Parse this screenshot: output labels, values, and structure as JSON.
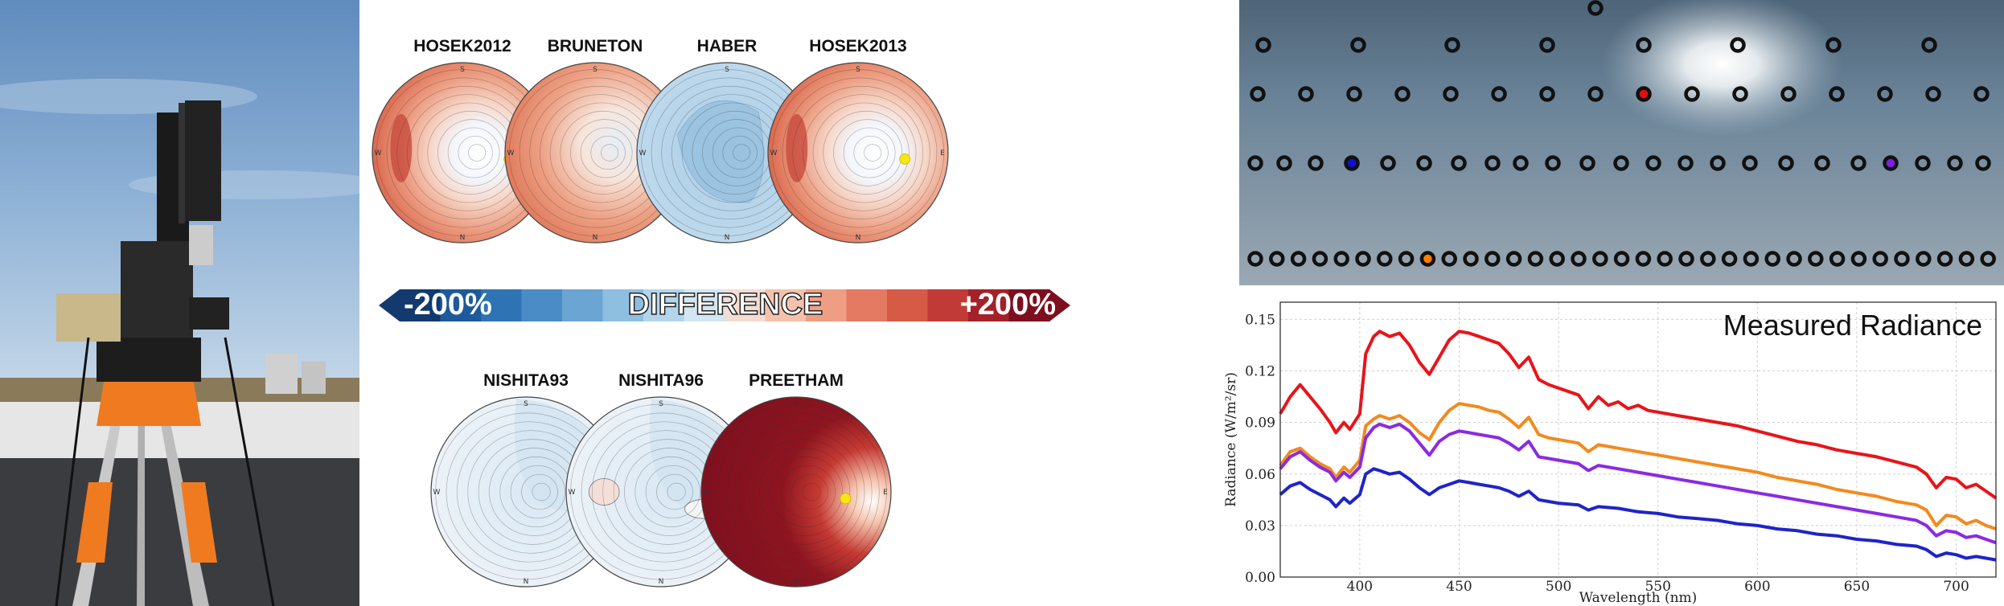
{
  "figure": {
    "photo": {
      "icon": "spectroradiometer-on-tripod-photo"
    },
    "polar_plots": {
      "row1": [
        {
          "title": "HOSEK2012",
          "style": "hosek"
        },
        {
          "title": "BRUNETON",
          "style": "bruneton"
        },
        {
          "title": "HABER",
          "style": "haber"
        },
        {
          "title": "HOSEK2013",
          "style": "hosek"
        }
      ],
      "row2": [
        {
          "title": "NISHITA93",
          "style": "nishita"
        },
        {
          "title": "NISHITA96",
          "style": "nishita96"
        },
        {
          "title": "PREETHAM",
          "style": "preetham"
        }
      ],
      "cardinals": {
        "n": "N",
        "s": "S",
        "e": "E",
        "w": "W"
      }
    },
    "colorbar": {
      "min_label": "-200%",
      "center_label": "DIFFERENCE",
      "max_label": "+200%",
      "colors": [
        "#123a6e",
        "#1d5a9c",
        "#2e74b5",
        "#4a8cc6",
        "#6aa5d4",
        "#8ebfe1",
        "#b2d5ec",
        "#d2e6f3",
        "#f6dcd0",
        "#f4c1ac",
        "#ef9e84",
        "#e47a62",
        "#d65a46",
        "#c23a35",
        "#a42129",
        "#7e0f1e"
      ]
    },
    "sky_samples": {
      "marker_color": "#111111",
      "highlight_colors": {
        "red": "#e01010",
        "orange": "#ff8000",
        "purple": "#7a20e0",
        "blue": "#1010d0"
      }
    }
  },
  "chart_data": {
    "type": "line",
    "title": "Measured Radiance",
    "xlabel": "Wavelength (nm)",
    "ylabel": "Radiance (W/m²/sr)",
    "xlim": [
      360,
      720
    ],
    "ylim": [
      0,
      0.16
    ],
    "xticks": [
      400,
      450,
      500,
      550,
      600,
      650,
      700
    ],
    "yticks": [
      0.0,
      0.03,
      0.06,
      0.09,
      0.12,
      0.15
    ],
    "grid": true,
    "series": [
      {
        "color": "#e8141a",
        "points": [
          [
            360,
            0.095
          ],
          [
            365,
            0.105
          ],
          [
            370,
            0.112
          ],
          [
            375,
            0.105
          ],
          [
            380,
            0.098
          ],
          [
            385,
            0.09
          ],
          [
            388,
            0.084
          ],
          [
            392,
            0.09
          ],
          [
            395,
            0.086
          ],
          [
            400,
            0.095
          ],
          [
            403,
            0.13
          ],
          [
            407,
            0.14
          ],
          [
            410,
            0.143
          ],
          [
            415,
            0.14
          ],
          [
            420,
            0.142
          ],
          [
            425,
            0.135
          ],
          [
            430,
            0.125
          ],
          [
            435,
            0.118
          ],
          [
            440,
            0.128
          ],
          [
            445,
            0.138
          ],
          [
            450,
            0.143
          ],
          [
            455,
            0.142
          ],
          [
            460,
            0.14
          ],
          [
            465,
            0.138
          ],
          [
            470,
            0.136
          ],
          [
            475,
            0.13
          ],
          [
            480,
            0.122
          ],
          [
            485,
            0.128
          ],
          [
            490,
            0.115
          ],
          [
            495,
            0.112
          ],
          [
            500,
            0.11
          ],
          [
            505,
            0.108
          ],
          [
            510,
            0.106
          ],
          [
            515,
            0.098
          ],
          [
            520,
            0.105
          ],
          [
            525,
            0.1
          ],
          [
            530,
            0.102
          ],
          [
            535,
            0.098
          ],
          [
            540,
            0.1
          ],
          [
            545,
            0.097
          ],
          [
            550,
            0.096
          ],
          [
            560,
            0.094
          ],
          [
            570,
            0.092
          ],
          [
            580,
            0.09
          ],
          [
            590,
            0.088
          ],
          [
            600,
            0.085
          ],
          [
            610,
            0.082
          ],
          [
            620,
            0.079
          ],
          [
            630,
            0.077
          ],
          [
            640,
            0.074
          ],
          [
            650,
            0.072
          ],
          [
            660,
            0.07
          ],
          [
            670,
            0.067
          ],
          [
            680,
            0.064
          ],
          [
            685,
            0.06
          ],
          [
            690,
            0.052
          ],
          [
            695,
            0.058
          ],
          [
            700,
            0.057
          ],
          [
            705,
            0.052
          ],
          [
            710,
            0.054
          ],
          [
            715,
            0.05
          ],
          [
            720,
            0.046
          ]
        ]
      },
      {
        "color": "#f28a1e",
        "points": [
          [
            360,
            0.065
          ],
          [
            365,
            0.073
          ],
          [
            370,
            0.075
          ],
          [
            375,
            0.07
          ],
          [
            380,
            0.066
          ],
          [
            385,
            0.063
          ],
          [
            388,
            0.058
          ],
          [
            392,
            0.064
          ],
          [
            395,
            0.061
          ],
          [
            400,
            0.068
          ],
          [
            403,
            0.088
          ],
          [
            407,
            0.092
          ],
          [
            410,
            0.094
          ],
          [
            415,
            0.092
          ],
          [
            420,
            0.094
          ],
          [
            425,
            0.09
          ],
          [
            430,
            0.084
          ],
          [
            435,
            0.08
          ],
          [
            440,
            0.09
          ],
          [
            445,
            0.097
          ],
          [
            450,
            0.101
          ],
          [
            455,
            0.1
          ],
          [
            460,
            0.099
          ],
          [
            465,
            0.097
          ],
          [
            470,
            0.096
          ],
          [
            475,
            0.092
          ],
          [
            480,
            0.087
          ],
          [
            485,
            0.093
          ],
          [
            490,
            0.083
          ],
          [
            495,
            0.081
          ],
          [
            500,
            0.08
          ],
          [
            510,
            0.078
          ],
          [
            515,
            0.073
          ],
          [
            520,
            0.077
          ],
          [
            530,
            0.075
          ],
          [
            540,
            0.073
          ],
          [
            550,
            0.071
          ],
          [
            560,
            0.069
          ],
          [
            570,
            0.067
          ],
          [
            580,
            0.065
          ],
          [
            590,
            0.063
          ],
          [
            600,
            0.061
          ],
          [
            610,
            0.058
          ],
          [
            620,
            0.056
          ],
          [
            630,
            0.054
          ],
          [
            640,
            0.051
          ],
          [
            650,
            0.049
          ],
          [
            660,
            0.047
          ],
          [
            670,
            0.044
          ],
          [
            680,
            0.042
          ],
          [
            685,
            0.039
          ],
          [
            690,
            0.03
          ],
          [
            695,
            0.036
          ],
          [
            700,
            0.035
          ],
          [
            705,
            0.031
          ],
          [
            710,
            0.033
          ],
          [
            715,
            0.03
          ],
          [
            720,
            0.028
          ]
        ]
      },
      {
        "color": "#8a2be2",
        "points": [
          [
            360,
            0.063
          ],
          [
            365,
            0.07
          ],
          [
            370,
            0.073
          ],
          [
            375,
            0.068
          ],
          [
            380,
            0.064
          ],
          [
            385,
            0.061
          ],
          [
            388,
            0.056
          ],
          [
            392,
            0.061
          ],
          [
            395,
            0.058
          ],
          [
            400,
            0.064
          ],
          [
            403,
            0.081
          ],
          [
            407,
            0.087
          ],
          [
            410,
            0.089
          ],
          [
            415,
            0.087
          ],
          [
            420,
            0.089
          ],
          [
            425,
            0.085
          ],
          [
            430,
            0.078
          ],
          [
            435,
            0.071
          ],
          [
            440,
            0.079
          ],
          [
            445,
            0.083
          ],
          [
            450,
            0.085
          ],
          [
            455,
            0.084
          ],
          [
            460,
            0.083
          ],
          [
            465,
            0.082
          ],
          [
            470,
            0.081
          ],
          [
            475,
            0.078
          ],
          [
            480,
            0.074
          ],
          [
            485,
            0.079
          ],
          [
            490,
            0.07
          ],
          [
            495,
            0.069
          ],
          [
            500,
            0.068
          ],
          [
            510,
            0.066
          ],
          [
            515,
            0.062
          ],
          [
            520,
            0.065
          ],
          [
            530,
            0.063
          ],
          [
            540,
            0.061
          ],
          [
            550,
            0.059
          ],
          [
            560,
            0.057
          ],
          [
            570,
            0.055
          ],
          [
            580,
            0.053
          ],
          [
            590,
            0.051
          ],
          [
            600,
            0.049
          ],
          [
            610,
            0.047
          ],
          [
            620,
            0.045
          ],
          [
            630,
            0.043
          ],
          [
            640,
            0.041
          ],
          [
            650,
            0.039
          ],
          [
            660,
            0.037
          ],
          [
            670,
            0.035
          ],
          [
            680,
            0.033
          ],
          [
            685,
            0.03
          ],
          [
            690,
            0.024
          ],
          [
            695,
            0.027
          ],
          [
            700,
            0.026
          ],
          [
            705,
            0.023
          ],
          [
            710,
            0.024
          ],
          [
            715,
            0.022
          ],
          [
            720,
            0.02
          ]
        ]
      },
      {
        "color": "#1f24c8",
        "points": [
          [
            360,
            0.048
          ],
          [
            365,
            0.053
          ],
          [
            370,
            0.055
          ],
          [
            375,
            0.051
          ],
          [
            380,
            0.048
          ],
          [
            385,
            0.045
          ],
          [
            388,
            0.041
          ],
          [
            392,
            0.046
          ],
          [
            395,
            0.043
          ],
          [
            400,
            0.048
          ],
          [
            403,
            0.06
          ],
          [
            407,
            0.063
          ],
          [
            410,
            0.062
          ],
          [
            415,
            0.06
          ],
          [
            420,
            0.061
          ],
          [
            425,
            0.057
          ],
          [
            430,
            0.052
          ],
          [
            435,
            0.048
          ],
          [
            440,
            0.052
          ],
          [
            445,
            0.054
          ],
          [
            450,
            0.056
          ],
          [
            455,
            0.055
          ],
          [
            460,
            0.054
          ],
          [
            465,
            0.053
          ],
          [
            470,
            0.052
          ],
          [
            475,
            0.05
          ],
          [
            480,
            0.047
          ],
          [
            485,
            0.05
          ],
          [
            490,
            0.045
          ],
          [
            495,
            0.044
          ],
          [
            500,
            0.043
          ],
          [
            510,
            0.042
          ],
          [
            515,
            0.039
          ],
          [
            520,
            0.041
          ],
          [
            530,
            0.04
          ],
          [
            540,
            0.038
          ],
          [
            550,
            0.037
          ],
          [
            560,
            0.035
          ],
          [
            570,
            0.034
          ],
          [
            580,
            0.033
          ],
          [
            590,
            0.031
          ],
          [
            600,
            0.03
          ],
          [
            610,
            0.028
          ],
          [
            620,
            0.027
          ],
          [
            630,
            0.025
          ],
          [
            640,
            0.024
          ],
          [
            650,
            0.022
          ],
          [
            660,
            0.021
          ],
          [
            670,
            0.019
          ],
          [
            680,
            0.018
          ],
          [
            685,
            0.016
          ],
          [
            690,
            0.012
          ],
          [
            695,
            0.014
          ],
          [
            700,
            0.013
          ],
          [
            705,
            0.011
          ],
          [
            710,
            0.012
          ],
          [
            715,
            0.011
          ],
          [
            720,
            0.01
          ]
        ]
      }
    ]
  }
}
